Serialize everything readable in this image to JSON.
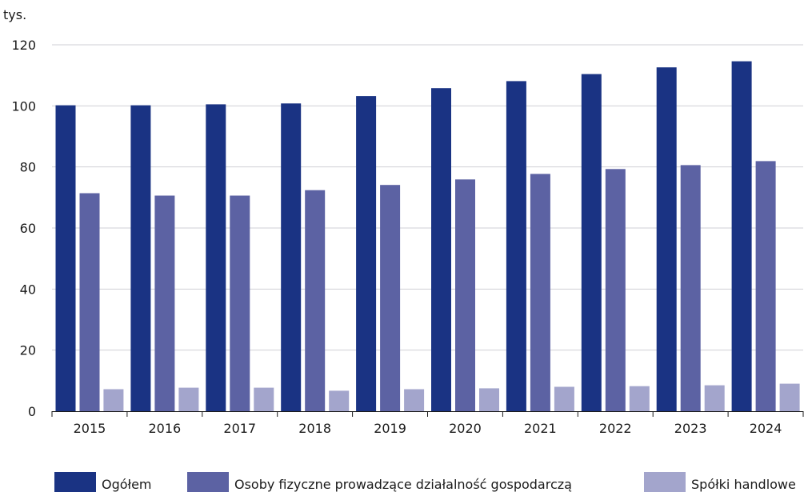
{
  "chart_data": {
    "type": "bar",
    "unit_label": "tys.",
    "categories": [
      "2015",
      "2016",
      "2017",
      "2018",
      "2019",
      "2020",
      "2021",
      "2022",
      "2023",
      "2024"
    ],
    "series": [
      {
        "name": "Ogółem",
        "color": "#1a3383",
        "values": [
          100.2,
          100.2,
          100.5,
          100.8,
          103.2,
          105.8,
          108.1,
          110.4,
          112.6,
          114.6
        ]
      },
      {
        "name": "Osoby fizyczne prowadzące działalność gospodarczą",
        "color": "#5c62a3",
        "values": [
          71.4,
          70.6,
          70.6,
          72.4,
          74.1,
          75.9,
          77.7,
          79.3,
          80.6,
          81.9
        ]
      },
      {
        "name": "Spółki handlowe",
        "color": "#a3a5cc",
        "values": [
          7.2,
          7.7,
          7.7,
          6.7,
          7.2,
          7.5,
          8.0,
          8.2,
          8.5,
          9.0
        ]
      }
    ],
    "yticks": [
      0,
      20,
      40,
      60,
      80,
      100,
      120
    ],
    "ylim": [
      0,
      120
    ],
    "grid": true,
    "legend_position": "bottom"
  }
}
